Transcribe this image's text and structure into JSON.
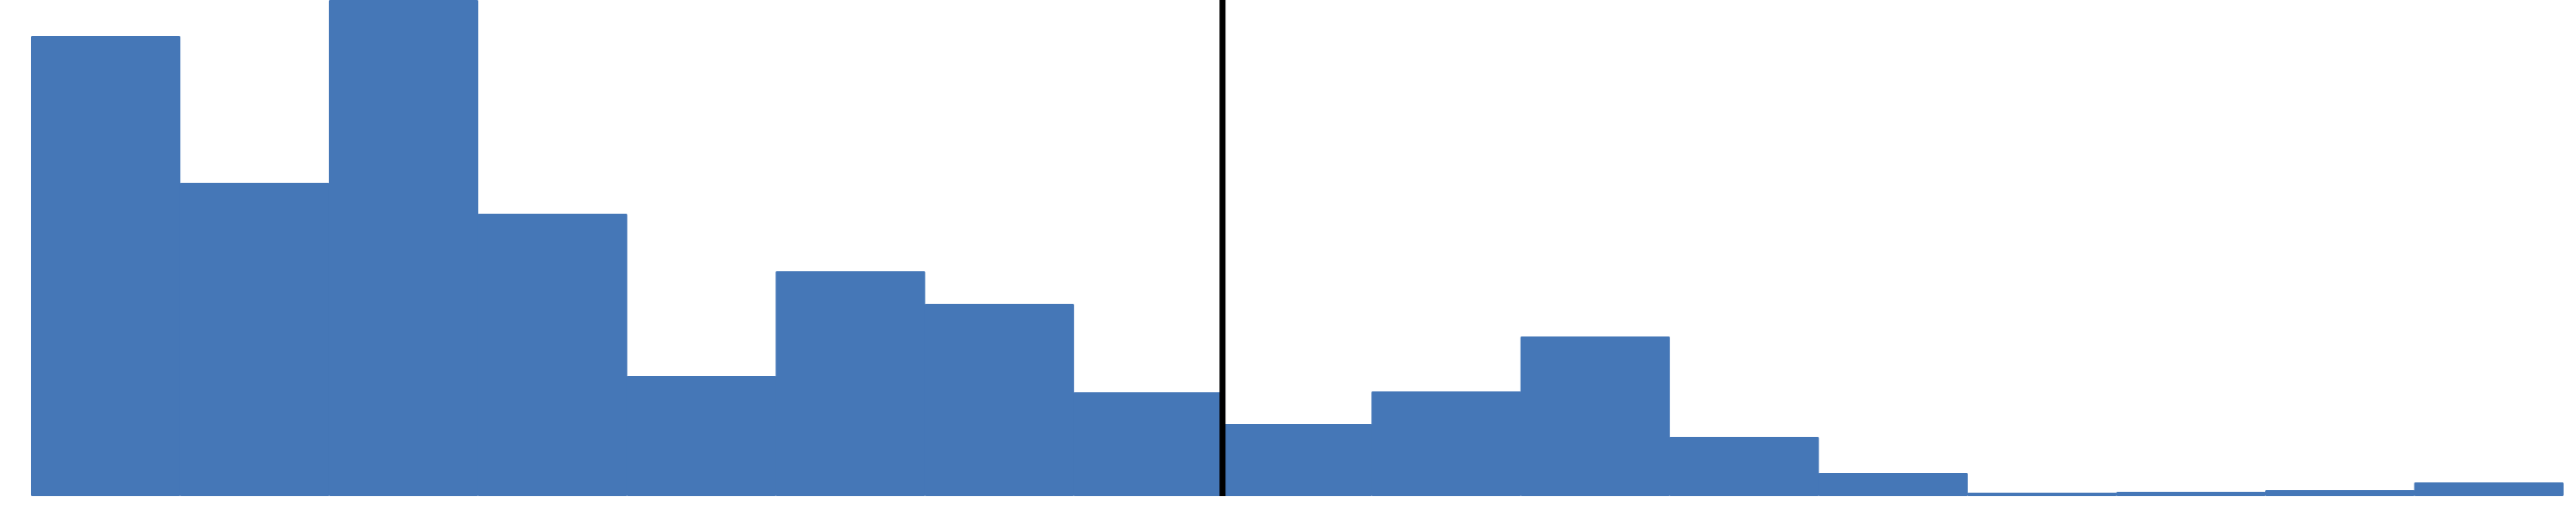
{
  "chart_data": {
    "type": "bar",
    "title": "",
    "xlabel": "",
    "ylabel": "",
    "values": [
      536,
      365,
      578,
      329,
      140,
      262,
      224,
      121,
      84,
      122,
      186,
      69,
      27,
      4,
      5,
      7,
      16
    ],
    "ylim": [
      0,
      578
    ],
    "bar_color": "#4577B7",
    "marker_color": "#000000",
    "marker_after_bar_index": 8,
    "grid": false,
    "legend": "none"
  }
}
